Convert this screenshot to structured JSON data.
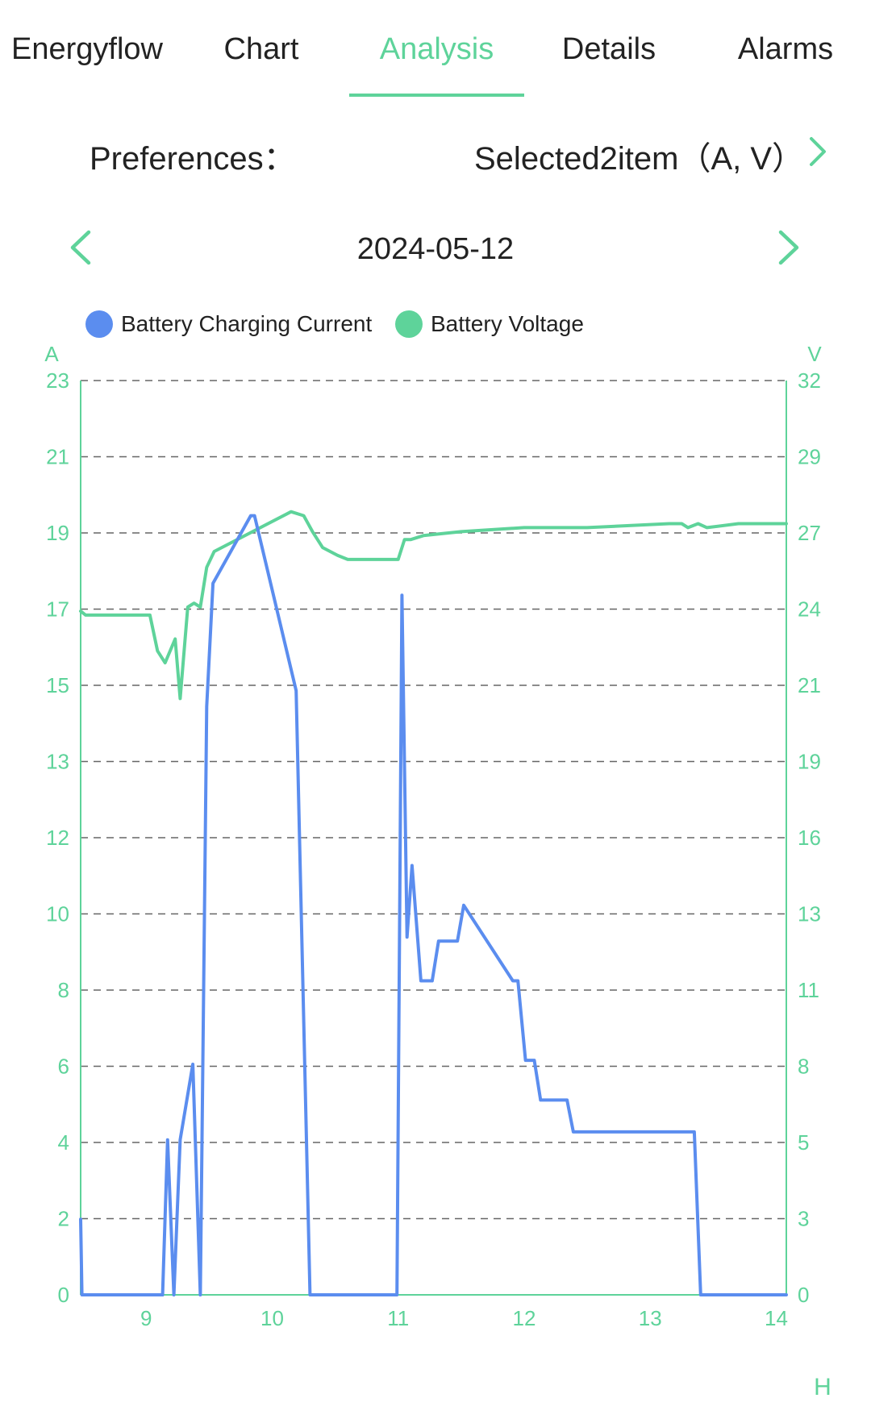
{
  "tabs": [
    {
      "label": "Energyflow",
      "active": false
    },
    {
      "label": "Chart",
      "active": false
    },
    {
      "label": "Analysis",
      "active": true
    },
    {
      "label": "Details",
      "active": false
    },
    {
      "label": "Alarms",
      "active": false
    }
  ],
  "preferences": {
    "label": "Preferences：",
    "value": "Selected2item（A, V）",
    "chevron_icon": "chevron-right-icon"
  },
  "date_nav": {
    "date": "2024-05-12",
    "prev_icon": "chevron-left-icon",
    "next_icon": "chevron-right-icon"
  },
  "colors": {
    "accent": "#5ED39A",
    "current": "#5B8DEF",
    "voltage": "#5ED39A",
    "text": "#222222",
    "grid": "#666666"
  },
  "chart_data": {
    "type": "line",
    "legend_position": "top-left",
    "grid": true,
    "x_unit": "H",
    "x_ticks": [
      "9",
      "10",
      "11",
      "12",
      "13",
      "14"
    ],
    "x_tick_values": [
      9,
      10,
      11,
      12,
      13,
      14
    ],
    "xlim": [
      8.48,
      14.08
    ],
    "left_axis": {
      "unit": "A",
      "ticks": [
        "0",
        "2",
        "4",
        "6",
        "8",
        "10",
        "12",
        "13",
        "15",
        "17",
        "19",
        "21",
        "23"
      ],
      "ylim": [
        0,
        23
      ]
    },
    "right_axis": {
      "unit": "V",
      "ticks": [
        "0",
        "3",
        "5",
        "8",
        "11",
        "13",
        "16",
        "19",
        "21",
        "24",
        "27",
        "29",
        "32"
      ],
      "ylim": [
        0,
        32
      ]
    },
    "series": [
      {
        "name": "Battery Charging Current",
        "axis": "left",
        "points": [
          [
            8.48,
            1.9
          ],
          [
            8.49,
            0
          ],
          [
            9.13,
            0
          ],
          [
            9.17,
            3.9
          ],
          [
            9.22,
            0
          ],
          [
            9.27,
            3.9
          ],
          [
            9.37,
            5.8
          ],
          [
            9.43,
            0
          ],
          [
            9.48,
            14.8
          ],
          [
            9.53,
            17.9
          ],
          [
            9.83,
            19.6
          ],
          [
            9.86,
            19.6
          ],
          [
            10.19,
            15.2
          ],
          [
            10.3,
            0
          ],
          [
            10.99,
            0
          ],
          [
            11.03,
            17.6
          ],
          [
            11.07,
            9.0
          ],
          [
            11.11,
            10.8
          ],
          [
            11.18,
            7.9
          ],
          [
            11.27,
            7.9
          ],
          [
            11.32,
            8.9
          ],
          [
            11.47,
            8.9
          ],
          [
            11.52,
            9.8
          ],
          [
            11.91,
            7.9
          ],
          [
            11.95,
            7.9
          ],
          [
            12.01,
            5.9
          ],
          [
            12.08,
            5.9
          ],
          [
            12.13,
            4.9
          ],
          [
            12.34,
            4.9
          ],
          [
            12.39,
            4.1
          ],
          [
            13.35,
            4.1
          ],
          [
            13.4,
            0
          ],
          [
            14.08,
            0
          ]
        ]
      },
      {
        "name": "Battery Voltage",
        "axis": "left",
        "points": [
          [
            8.48,
            17.2
          ],
          [
            8.52,
            17.1
          ],
          [
            9.03,
            17.1
          ],
          [
            9.09,
            16.2
          ],
          [
            9.15,
            15.9
          ],
          [
            9.23,
            16.5
          ],
          [
            9.27,
            15.0
          ],
          [
            9.33,
            17.3
          ],
          [
            9.38,
            17.4
          ],
          [
            9.43,
            17.3
          ],
          [
            9.48,
            18.3
          ],
          [
            9.54,
            18.7
          ],
          [
            10.15,
            19.7
          ],
          [
            10.25,
            19.6
          ],
          [
            10.32,
            19.2
          ],
          [
            10.4,
            18.8
          ],
          [
            10.52,
            18.6
          ],
          [
            10.6,
            18.5
          ],
          [
            11.0,
            18.5
          ],
          [
            11.05,
            19.0
          ],
          [
            11.1,
            19.0
          ],
          [
            11.2,
            19.1
          ],
          [
            11.5,
            19.2
          ],
          [
            12.0,
            19.3
          ],
          [
            12.5,
            19.3
          ],
          [
            13.15,
            19.4
          ],
          [
            13.25,
            19.4
          ],
          [
            13.3,
            19.3
          ],
          [
            13.38,
            19.4
          ],
          [
            13.45,
            19.3
          ],
          [
            13.7,
            19.4
          ],
          [
            14.08,
            19.4
          ]
        ]
      }
    ]
  }
}
